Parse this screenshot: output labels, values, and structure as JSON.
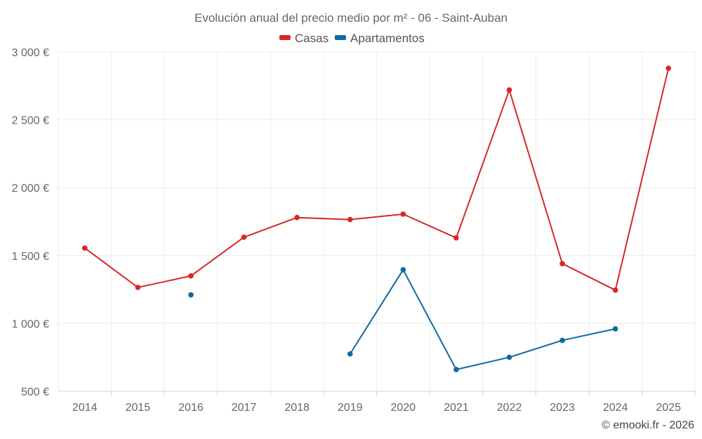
{
  "chart_data": {
    "type": "line",
    "title": "Evolución anual del precio medio por m² - 06 - Saint-Auban",
    "categories": [
      "2014",
      "2015",
      "2016",
      "2017",
      "2018",
      "2019",
      "2020",
      "2021",
      "2022",
      "2023",
      "2024",
      "2025"
    ],
    "ylim": [
      500,
      3000
    ],
    "yticks": [
      500,
      1000,
      1500,
      2000,
      2500,
      3000
    ],
    "ytick_labels": [
      "500 €",
      "1 000 €",
      "1 500 €",
      "2 000 €",
      "2 500 €",
      "3 000 €"
    ],
    "xlabel": "",
    "ylabel": "",
    "grid": true,
    "legend_position": "top-center",
    "series": [
      {
        "name": "Casas",
        "color": "#d62728",
        "values": [
          1555,
          1265,
          1350,
          1635,
          1780,
          1765,
          1805,
          1630,
          2720,
          1440,
          1245,
          2880
        ]
      },
      {
        "name": "Apartamentos",
        "color": "#0d6aa0",
        "values": [
          null,
          null,
          1210,
          null,
          null,
          775,
          1395,
          660,
          750,
          875,
          960,
          null
        ]
      }
    ]
  },
  "credit": "© emooki.fr - 2026"
}
